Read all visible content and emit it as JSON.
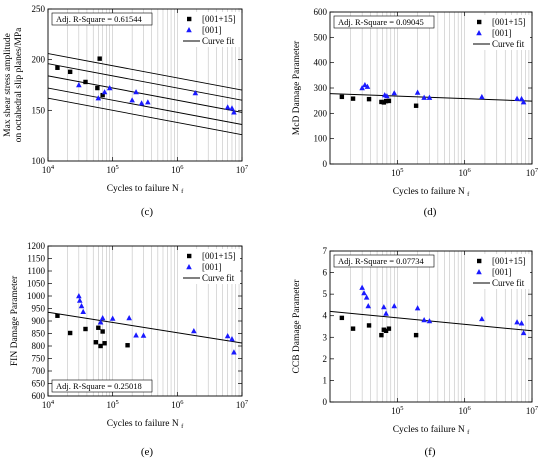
{
  "chart_data": [
    {
      "id": "c",
      "type": "scatter",
      "panel_label": "(c)",
      "xlabel": "Cycles to failure N",
      "xlabel_sub": "f",
      "ylabel_lines": [
        "Max shear stress amplitude",
        "on octahedral slip planes/MPa"
      ],
      "xscale": "log",
      "xlim": [
        10000,
        10000000
      ],
      "ylim": [
        100,
        250
      ],
      "yticks": [
        100,
        150,
        200,
        250
      ],
      "xticks": [
        10000,
        100000,
        1000000,
        10000000
      ],
      "xtick_labels": [
        [
          "10",
          "4"
        ],
        [
          "10",
          "5"
        ],
        [
          "10",
          "6"
        ],
        [
          "10",
          "7"
        ]
      ],
      "grid": "vertical",
      "legend_position": "top-right",
      "legend": [
        "[001+15]",
        "[001]",
        "Curve fit"
      ],
      "rsq_text": "Adj. R-Square = 0.61544",
      "rsq_position": "top-left",
      "series": [
        {
          "name": "[001+15]",
          "marker": "square",
          "color": "#000000",
          "x": [
            14000,
            22000,
            38000,
            58000,
            63000,
            70000
          ],
          "y": [
            192,
            188,
            178,
            172,
            201,
            165
          ]
        },
        {
          "name": "[001]",
          "marker": "triangle",
          "color": "#1a1aff",
          "x": [
            30000,
            60000,
            75000,
            90000,
            200000,
            230000,
            280000,
            350000,
            1900000,
            6000000,
            7000000,
            7500000
          ],
          "y": [
            175,
            162,
            168,
            172,
            160,
            168,
            157,
            158,
            167,
            153,
            152,
            148
          ]
        }
      ],
      "fit": {
        "x": [
          10000,
          10000000
        ],
        "y": [
          184,
          148
        ]
      },
      "bands": [
        {
          "x": [
            10000,
            10000000
          ],
          "y": [
            196,
            160
          ]
        },
        {
          "x": [
            10000,
            10000000
          ],
          "y": [
            172,
            136
          ]
        },
        {
          "x": [
            10000,
            10000000
          ],
          "y": [
            206,
            170
          ]
        },
        {
          "x": [
            10000,
            10000000
          ],
          "y": [
            162,
            126
          ]
        }
      ]
    },
    {
      "id": "d",
      "type": "scatter",
      "panel_label": "(d)",
      "xlabel": "Cycles to failure N",
      "xlabel_sub": "f",
      "ylabel_lines": [
        "McD Damage Parameter"
      ],
      "xscale": "log",
      "xlim": [
        10000,
        10000000
      ],
      "ylim": [
        0,
        600
      ],
      "yticks": [
        0,
        100,
        200,
        300,
        400,
        500,
        600
      ],
      "xticks": [
        100000,
        1000000,
        10000000
      ],
      "xtick_labels": [
        [
          "10",
          "5"
        ],
        [
          "10",
          "6"
        ],
        [
          "10",
          "7"
        ]
      ],
      "grid": "vertical",
      "legend_position": "top-right",
      "legend": [
        "[001+15]",
        "[001]",
        "Curve fit"
      ],
      "rsq_text": "Adj. R-Square = 0.09045",
      "rsq_position": "top-left",
      "series": [
        {
          "name": "[001+15]",
          "marker": "square",
          "color": "#000000",
          "x": [
            15000,
            22000,
            38000,
            58000,
            63000,
            68000,
            75000,
            190000
          ],
          "y": [
            265,
            258,
            256,
            245,
            243,
            248,
            249,
            230
          ]
        },
        {
          "name": "[001]",
          "marker": "triangle",
          "color": "#1a1aff",
          "x": [
            30000,
            33000,
            36000,
            65000,
            70000,
            90000,
            200000,
            250000,
            300000,
            1800000,
            6000000,
            7000000,
            7500000
          ],
          "y": [
            300,
            312,
            305,
            272,
            268,
            280,
            282,
            262,
            262,
            265,
            258,
            257,
            244
          ]
        }
      ],
      "fit": {
        "x": [
          10000,
          10000000
        ],
        "y": [
          278,
          248
        ]
      }
    },
    {
      "id": "e",
      "type": "scatter",
      "panel_label": "(e)",
      "xlabel": "Cycles to failure N",
      "xlabel_sub": "f",
      "ylabel_lines": [
        "FIN Damage Parameter"
      ],
      "xscale": "log",
      "xlim": [
        10000,
        10000000
      ],
      "ylim": [
        600,
        1200
      ],
      "yticks": [
        600,
        650,
        700,
        750,
        800,
        850,
        900,
        950,
        1000,
        1050,
        1100,
        1150,
        1200
      ],
      "xticks": [
        10000,
        100000,
        1000000,
        10000000
      ],
      "xtick_labels": [
        [
          "10",
          "4"
        ],
        [
          "10",
          "5"
        ],
        [
          "10",
          "6"
        ],
        [
          "10",
          "7"
        ]
      ],
      "grid": "vertical",
      "legend_position": "top-right",
      "legend": [
        "[001+15]",
        "[001]",
        "Curve fit"
      ],
      "rsq_text": "Adj. R-Square = 0.25018",
      "rsq_position": "bottom-left",
      "series": [
        {
          "name": "[001+15]",
          "marker": "square",
          "color": "#000000",
          "x": [
            14000,
            22000,
            38000,
            55000,
            60000,
            65000,
            70000,
            75000,
            170000
          ],
          "y": [
            921,
            852,
            868,
            815,
            873,
            800,
            858,
            811,
            803
          ]
        },
        {
          "name": "[001]",
          "marker": "triangle",
          "color": "#1a1aff",
          "x": [
            30000,
            31000,
            33000,
            35000,
            65000,
            70000,
            100000,
            180000,
            230000,
            300000,
            1800000,
            6000000,
            7000000,
            7500000
          ],
          "y": [
            1000,
            982,
            960,
            937,
            895,
            912,
            910,
            912,
            843,
            842,
            860,
            840,
            828,
            775
          ]
        }
      ],
      "fit": {
        "x": [
          10000,
          10000000
        ],
        "y": [
          935,
          812
        ]
      }
    },
    {
      "id": "f",
      "type": "scatter",
      "panel_label": "(f)",
      "xlabel": "Cycles to failure N",
      "xlabel_sub": "f",
      "ylabel_lines": [
        "CCB Damage Parameter"
      ],
      "xscale": "log",
      "xlim": [
        10000,
        10000000
      ],
      "ylim": [
        0,
        7
      ],
      "yticks": [
        0,
        1,
        2,
        3,
        4,
        5,
        6,
        7
      ],
      "xticks": [
        100000,
        1000000,
        10000000
      ],
      "xtick_labels": [
        [
          "10",
          "5"
        ],
        [
          "10",
          "6"
        ],
        [
          "10",
          "7"
        ]
      ],
      "grid": "vertical",
      "legend_position": "top-right",
      "legend": [
        "[001+15]",
        "[001]",
        "Curve fit"
      ],
      "rsq_text": "Adj. R-Square = 0.07734",
      "rsq_position": "top-left",
      "series": [
        {
          "name": "[001+15]",
          "marker": "square",
          "color": "#000000",
          "x": [
            15000,
            22000,
            38000,
            58000,
            63000,
            68000,
            75000,
            190000
          ],
          "y": [
            3.9,
            3.4,
            3.55,
            3.1,
            3.35,
            3.3,
            3.4,
            3.1
          ]
        },
        {
          "name": "[001]",
          "marker": "triangle",
          "color": "#1a1aff",
          "x": [
            30000,
            32000,
            35000,
            37000,
            63000,
            68000,
            90000,
            200000,
            250000,
            300000,
            1800000,
            6000000,
            7000000,
            7500000
          ],
          "y": [
            5.3,
            5.05,
            4.85,
            4.45,
            4.4,
            4.1,
            4.45,
            4.35,
            3.8,
            3.75,
            3.85,
            3.7,
            3.65,
            3.2
          ]
        }
      ],
      "fit": {
        "x": [
          10000,
          10000000
        ],
        "y": [
          4.2,
          3.3
        ]
      }
    }
  ]
}
